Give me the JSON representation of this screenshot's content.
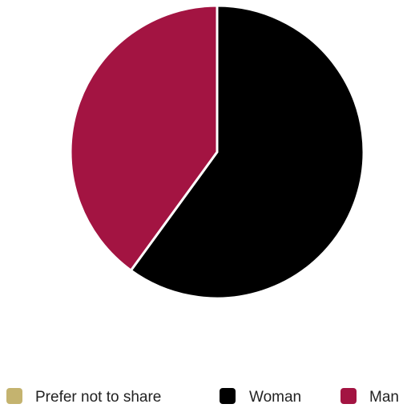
{
  "chart_data": {
    "type": "pie",
    "title": "",
    "slices": [
      {
        "label": "Prefer not to share",
        "value": 0,
        "color": "#c4b36f"
      },
      {
        "label": "Woman",
        "value": 60,
        "color": "#000000"
      },
      {
        "label": "Man",
        "value": 40,
        "color": "#a31442"
      }
    ],
    "legend": {
      "position": "bottom",
      "items": [
        {
          "label": "Prefer not to share",
          "color": "#c4b36f"
        },
        {
          "label": "Woman",
          "color": "#000000"
        },
        {
          "label": "Man",
          "color": "#a31442"
        }
      ]
    }
  }
}
